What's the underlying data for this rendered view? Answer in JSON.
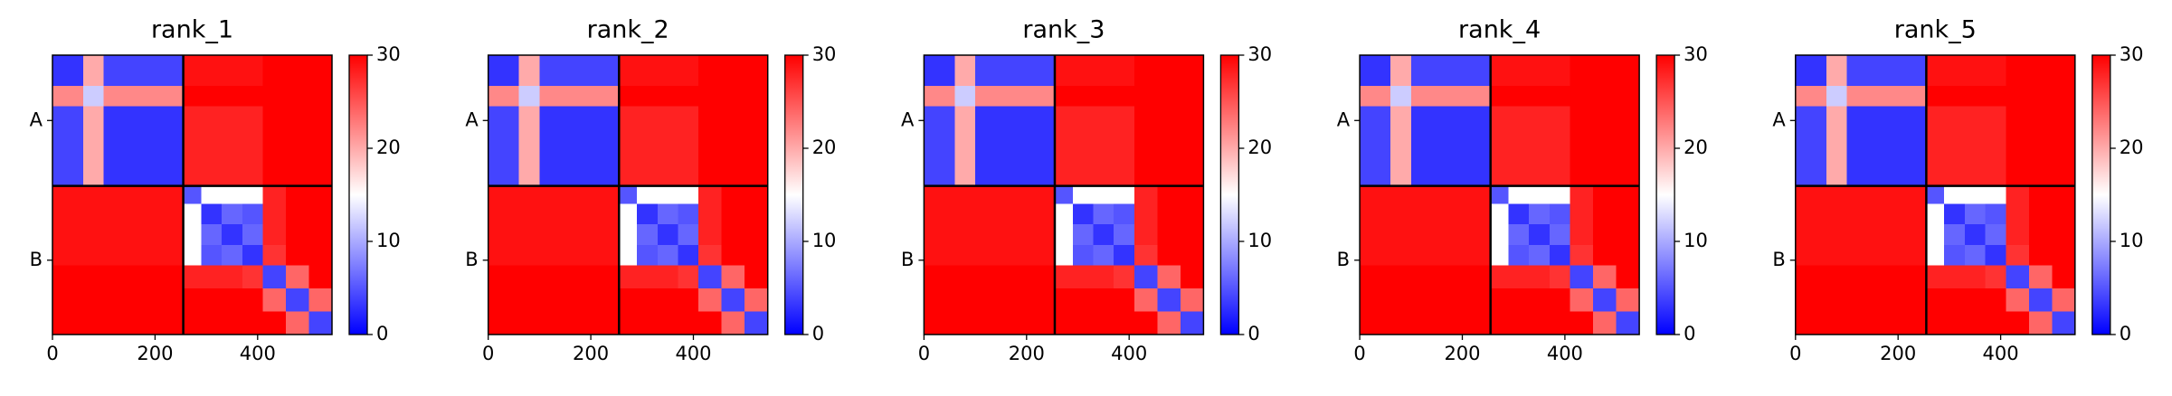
{
  "chart_data": [
    {
      "type": "heatmap",
      "title": "rank_1",
      "colormap": "bwr",
      "x_bins": [
        0,
        60,
        100,
        255,
        290,
        330,
        370,
        410,
        455,
        500,
        545
      ],
      "y_bins": [
        0,
        60,
        100,
        255,
        290,
        330,
        370,
        410,
        455,
        500,
        545
      ],
      "values": [
        [
          3,
          20,
          4,
          29,
          29,
          29,
          29,
          30,
          30,
          30
        ],
        [
          22,
          12,
          22,
          30,
          30,
          30,
          30,
          30,
          30,
          30
        ],
        [
          4,
          20,
          3,
          28,
          28,
          28,
          28,
          30,
          30,
          30
        ],
        [
          29,
          29,
          29,
          5,
          15,
          15,
          15,
          28,
          30,
          30
        ],
        [
          29,
          29,
          29,
          15,
          3,
          6,
          5,
          28,
          30,
          30
        ],
        [
          29,
          29,
          29,
          15,
          6,
          3,
          6,
          28,
          30,
          30
        ],
        [
          29,
          29,
          29,
          15,
          5,
          6,
          3,
          27,
          30,
          30
        ],
        [
          30,
          30,
          30,
          28,
          28,
          28,
          27,
          4,
          24,
          30
        ],
        [
          30,
          30,
          30,
          30,
          30,
          30,
          30,
          24,
          4,
          24
        ],
        [
          30,
          30,
          30,
          30,
          30,
          30,
          30,
          30,
          24,
          4
        ]
      ],
      "xlim": [
        0,
        545
      ],
      "ylim": [
        545,
        0
      ],
      "xticks": [
        0,
        200,
        400
      ],
      "yticks": [
        {
          "value": 127.5,
          "label": "A"
        },
        {
          "value": 400,
          "label": "B"
        }
      ],
      "chain_breaks": [
        255
      ],
      "clim": [
        0,
        30
      ],
      "cticks": [
        0,
        10,
        20,
        30
      ]
    },
    {
      "type": "heatmap",
      "title": "rank_2",
      "colormap": "bwr",
      "x_bins": [
        0,
        60,
        100,
        255,
        290,
        330,
        370,
        410,
        455,
        500,
        545
      ],
      "y_bins": [
        0,
        60,
        100,
        255,
        290,
        330,
        370,
        410,
        455,
        500,
        545
      ],
      "values": [
        [
          3,
          20,
          4,
          29,
          29,
          29,
          29,
          30,
          30,
          30
        ],
        [
          22,
          12,
          22,
          30,
          30,
          30,
          30,
          30,
          30,
          30
        ],
        [
          4,
          20,
          3,
          28,
          28,
          28,
          28,
          30,
          30,
          30
        ],
        [
          29,
          29,
          29,
          5,
          15,
          15,
          15,
          28,
          30,
          30
        ],
        [
          29,
          29,
          29,
          15,
          3,
          6,
          5,
          28,
          30,
          30
        ],
        [
          29,
          29,
          29,
          15,
          6,
          3,
          6,
          28,
          30,
          30
        ],
        [
          29,
          29,
          29,
          15,
          5,
          6,
          3,
          27,
          30,
          30
        ],
        [
          30,
          30,
          30,
          28,
          28,
          28,
          27,
          4,
          24,
          30
        ],
        [
          30,
          30,
          30,
          30,
          30,
          30,
          30,
          24,
          4,
          24
        ],
        [
          30,
          30,
          30,
          30,
          30,
          30,
          30,
          30,
          24,
          4
        ]
      ],
      "xlim": [
        0,
        545
      ],
      "ylim": [
        545,
        0
      ],
      "xticks": [
        0,
        200,
        400
      ],
      "yticks": [
        {
          "value": 127.5,
          "label": "A"
        },
        {
          "value": 400,
          "label": "B"
        }
      ],
      "chain_breaks": [
        255
      ],
      "clim": [
        0,
        30
      ],
      "cticks": [
        0,
        10,
        20,
        30
      ]
    },
    {
      "type": "heatmap",
      "title": "rank_3",
      "colormap": "bwr",
      "x_bins": [
        0,
        60,
        100,
        255,
        290,
        330,
        370,
        410,
        455,
        500,
        545
      ],
      "y_bins": [
        0,
        60,
        100,
        255,
        290,
        330,
        370,
        410,
        455,
        500,
        545
      ],
      "values": [
        [
          3,
          20,
          4,
          29,
          29,
          29,
          29,
          30,
          30,
          30
        ],
        [
          22,
          12,
          22,
          30,
          30,
          30,
          30,
          30,
          30,
          30
        ],
        [
          4,
          20,
          3,
          28,
          28,
          28,
          28,
          30,
          30,
          30
        ],
        [
          29,
          29,
          29,
          5,
          15,
          15,
          15,
          28,
          30,
          30
        ],
        [
          29,
          29,
          29,
          15,
          3,
          6,
          5,
          28,
          30,
          30
        ],
        [
          29,
          29,
          29,
          15,
          6,
          3,
          6,
          28,
          30,
          30
        ],
        [
          29,
          29,
          29,
          15,
          5,
          6,
          3,
          27,
          30,
          30
        ],
        [
          30,
          30,
          30,
          28,
          28,
          28,
          27,
          4,
          24,
          30
        ],
        [
          30,
          30,
          30,
          30,
          30,
          30,
          30,
          24,
          4,
          24
        ],
        [
          30,
          30,
          30,
          30,
          30,
          30,
          30,
          30,
          24,
          4
        ]
      ],
      "xlim": [
        0,
        545
      ],
      "ylim": [
        545,
        0
      ],
      "xticks": [
        0,
        200,
        400
      ],
      "yticks": [
        {
          "value": 127.5,
          "label": "A"
        },
        {
          "value": 400,
          "label": "B"
        }
      ],
      "chain_breaks": [
        255
      ],
      "clim": [
        0,
        30
      ],
      "cticks": [
        0,
        10,
        20,
        30
      ]
    },
    {
      "type": "heatmap",
      "title": "rank_4",
      "colormap": "bwr",
      "x_bins": [
        0,
        60,
        100,
        255,
        290,
        330,
        370,
        410,
        455,
        500,
        545
      ],
      "y_bins": [
        0,
        60,
        100,
        255,
        290,
        330,
        370,
        410,
        455,
        500,
        545
      ],
      "values": [
        [
          3,
          20,
          4,
          29,
          29,
          29,
          29,
          30,
          30,
          30
        ],
        [
          22,
          12,
          22,
          30,
          30,
          30,
          30,
          30,
          30,
          30
        ],
        [
          4,
          20,
          3,
          28,
          28,
          28,
          28,
          30,
          30,
          30
        ],
        [
          29,
          29,
          29,
          5,
          15,
          15,
          15,
          28,
          30,
          30
        ],
        [
          29,
          29,
          29,
          15,
          3,
          6,
          5,
          28,
          30,
          30
        ],
        [
          29,
          29,
          29,
          15,
          6,
          3,
          6,
          28,
          30,
          30
        ],
        [
          29,
          29,
          29,
          15,
          5,
          6,
          3,
          27,
          30,
          30
        ],
        [
          30,
          30,
          30,
          28,
          28,
          28,
          27,
          4,
          24,
          30
        ],
        [
          30,
          30,
          30,
          30,
          30,
          30,
          30,
          24,
          4,
          24
        ],
        [
          30,
          30,
          30,
          30,
          30,
          30,
          30,
          30,
          24,
          4
        ]
      ],
      "xlim": [
        0,
        545
      ],
      "ylim": [
        545,
        0
      ],
      "xticks": [
        0,
        200,
        400
      ],
      "yticks": [
        {
          "value": 127.5,
          "label": "A"
        },
        {
          "value": 400,
          "label": "B"
        }
      ],
      "chain_breaks": [
        255
      ],
      "clim": [
        0,
        30
      ],
      "cticks": [
        0,
        10,
        20,
        30
      ]
    },
    {
      "type": "heatmap",
      "title": "rank_5",
      "colormap": "bwr",
      "x_bins": [
        0,
        60,
        100,
        255,
        290,
        330,
        370,
        410,
        455,
        500,
        545
      ],
      "y_bins": [
        0,
        60,
        100,
        255,
        290,
        330,
        370,
        410,
        455,
        500,
        545
      ],
      "values": [
        [
          3,
          20,
          4,
          29,
          29,
          29,
          29,
          30,
          30,
          30
        ],
        [
          22,
          12,
          22,
          30,
          30,
          30,
          30,
          30,
          30,
          30
        ],
        [
          4,
          20,
          3,
          28,
          28,
          28,
          28,
          30,
          30,
          30
        ],
        [
          29,
          29,
          29,
          5,
          15,
          15,
          15,
          28,
          30,
          30
        ],
        [
          29,
          29,
          29,
          15,
          3,
          6,
          5,
          28,
          30,
          30
        ],
        [
          29,
          29,
          29,
          15,
          6,
          3,
          6,
          28,
          30,
          30
        ],
        [
          29,
          29,
          29,
          15,
          5,
          6,
          3,
          27,
          30,
          30
        ],
        [
          30,
          30,
          30,
          28,
          28,
          28,
          27,
          4,
          24,
          30
        ],
        [
          30,
          30,
          30,
          30,
          30,
          30,
          30,
          24,
          4,
          24
        ],
        [
          30,
          30,
          30,
          30,
          30,
          30,
          30,
          30,
          24,
          4
        ]
      ],
      "xlim": [
        0,
        545
      ],
      "ylim": [
        545,
        0
      ],
      "xticks": [
        0,
        200,
        400
      ],
      "yticks": [
        {
          "value": 127.5,
          "label": "A"
        },
        {
          "value": 400,
          "label": "B"
        }
      ],
      "chain_breaks": [
        255
      ],
      "clim": [
        0,
        30
      ],
      "cticks": [
        0,
        10,
        20,
        30
      ]
    }
  ]
}
